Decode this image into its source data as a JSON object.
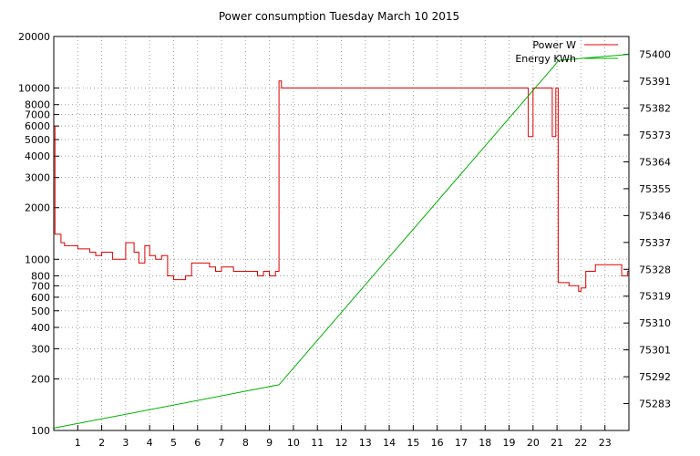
{
  "chart_data": {
    "type": "line",
    "title": "Power consumption Tuesday March 10 2015",
    "xlabel": "",
    "ylabel": "",
    "y2label": "",
    "xlim": [
      0,
      24
    ],
    "ylim": [
      100,
      20000
    ],
    "y_scale": "log",
    "y2lim": [
      75274,
      75406
    ],
    "x_ticks": [
      1,
      2,
      3,
      4,
      5,
      6,
      7,
      8,
      9,
      10,
      11,
      12,
      13,
      14,
      15,
      16,
      17,
      18,
      19,
      20,
      21,
      22,
      23
    ],
    "y_ticks": [
      100,
      200,
      300,
      400,
      500,
      600,
      700,
      800,
      1000,
      2000,
      3000,
      4000,
      5000,
      6000,
      7000,
      8000,
      10000,
      20000
    ],
    "y2_ticks": [
      75283,
      75292,
      75301,
      75310,
      75319,
      75328,
      75337,
      75346,
      75355,
      75364,
      75373,
      75382,
      75391,
      75400
    ],
    "grid": true,
    "legend": "top-right",
    "series": [
      {
        "name": "Power W",
        "axis": "y",
        "color": "#e00000",
        "x": [
          0.0,
          0.05,
          0.3,
          0.45,
          1.0,
          1.5,
          1.75,
          2.0,
          2.45,
          2.9,
          3.0,
          3.35,
          3.55,
          3.8,
          4.0,
          4.25,
          4.5,
          4.75,
          5.0,
          5.5,
          5.75,
          6.0,
          6.5,
          6.75,
          7.0,
          7.5,
          7.75,
          8.0,
          8.5,
          8.75,
          9.0,
          9.25,
          9.4,
          9.5,
          10.0,
          11.0,
          12.0,
          13.0,
          14.0,
          15.0,
          16.0,
          17.0,
          18.0,
          19.0,
          19.6,
          19.8,
          20.0,
          20.6,
          20.8,
          20.95,
          21.05,
          21.5,
          21.9,
          22.0,
          22.2,
          22.4,
          22.6,
          23.0,
          23.5,
          23.7,
          23.95
        ],
        "values": [
          6000,
          1400,
          1250,
          1200,
          1150,
          1100,
          1050,
          1100,
          1000,
          1000,
          1250,
          1100,
          950,
          1200,
          1050,
          1000,
          1050,
          800,
          760,
          800,
          950,
          950,
          900,
          850,
          900,
          850,
          850,
          850,
          800,
          850,
          800,
          850,
          11000,
          10000,
          10000,
          10000,
          10000,
          10000,
          10000,
          10000,
          10000,
          10000,
          10000,
          10000,
          10000,
          5200,
          10000,
          10000,
          5200,
          10000,
          730,
          700,
          650,
          680,
          850,
          850,
          930,
          930,
          930,
          800,
          850
        ]
      },
      {
        "name": "Energy KWh",
        "axis": "y2",
        "color": "#00b000",
        "x": [
          0.0,
          9.4,
          20.9,
          21.05,
          24.0
        ],
        "values": [
          75274.8,
          75289.3,
          75396.3,
          75398.0,
          75400.0
        ]
      }
    ]
  }
}
